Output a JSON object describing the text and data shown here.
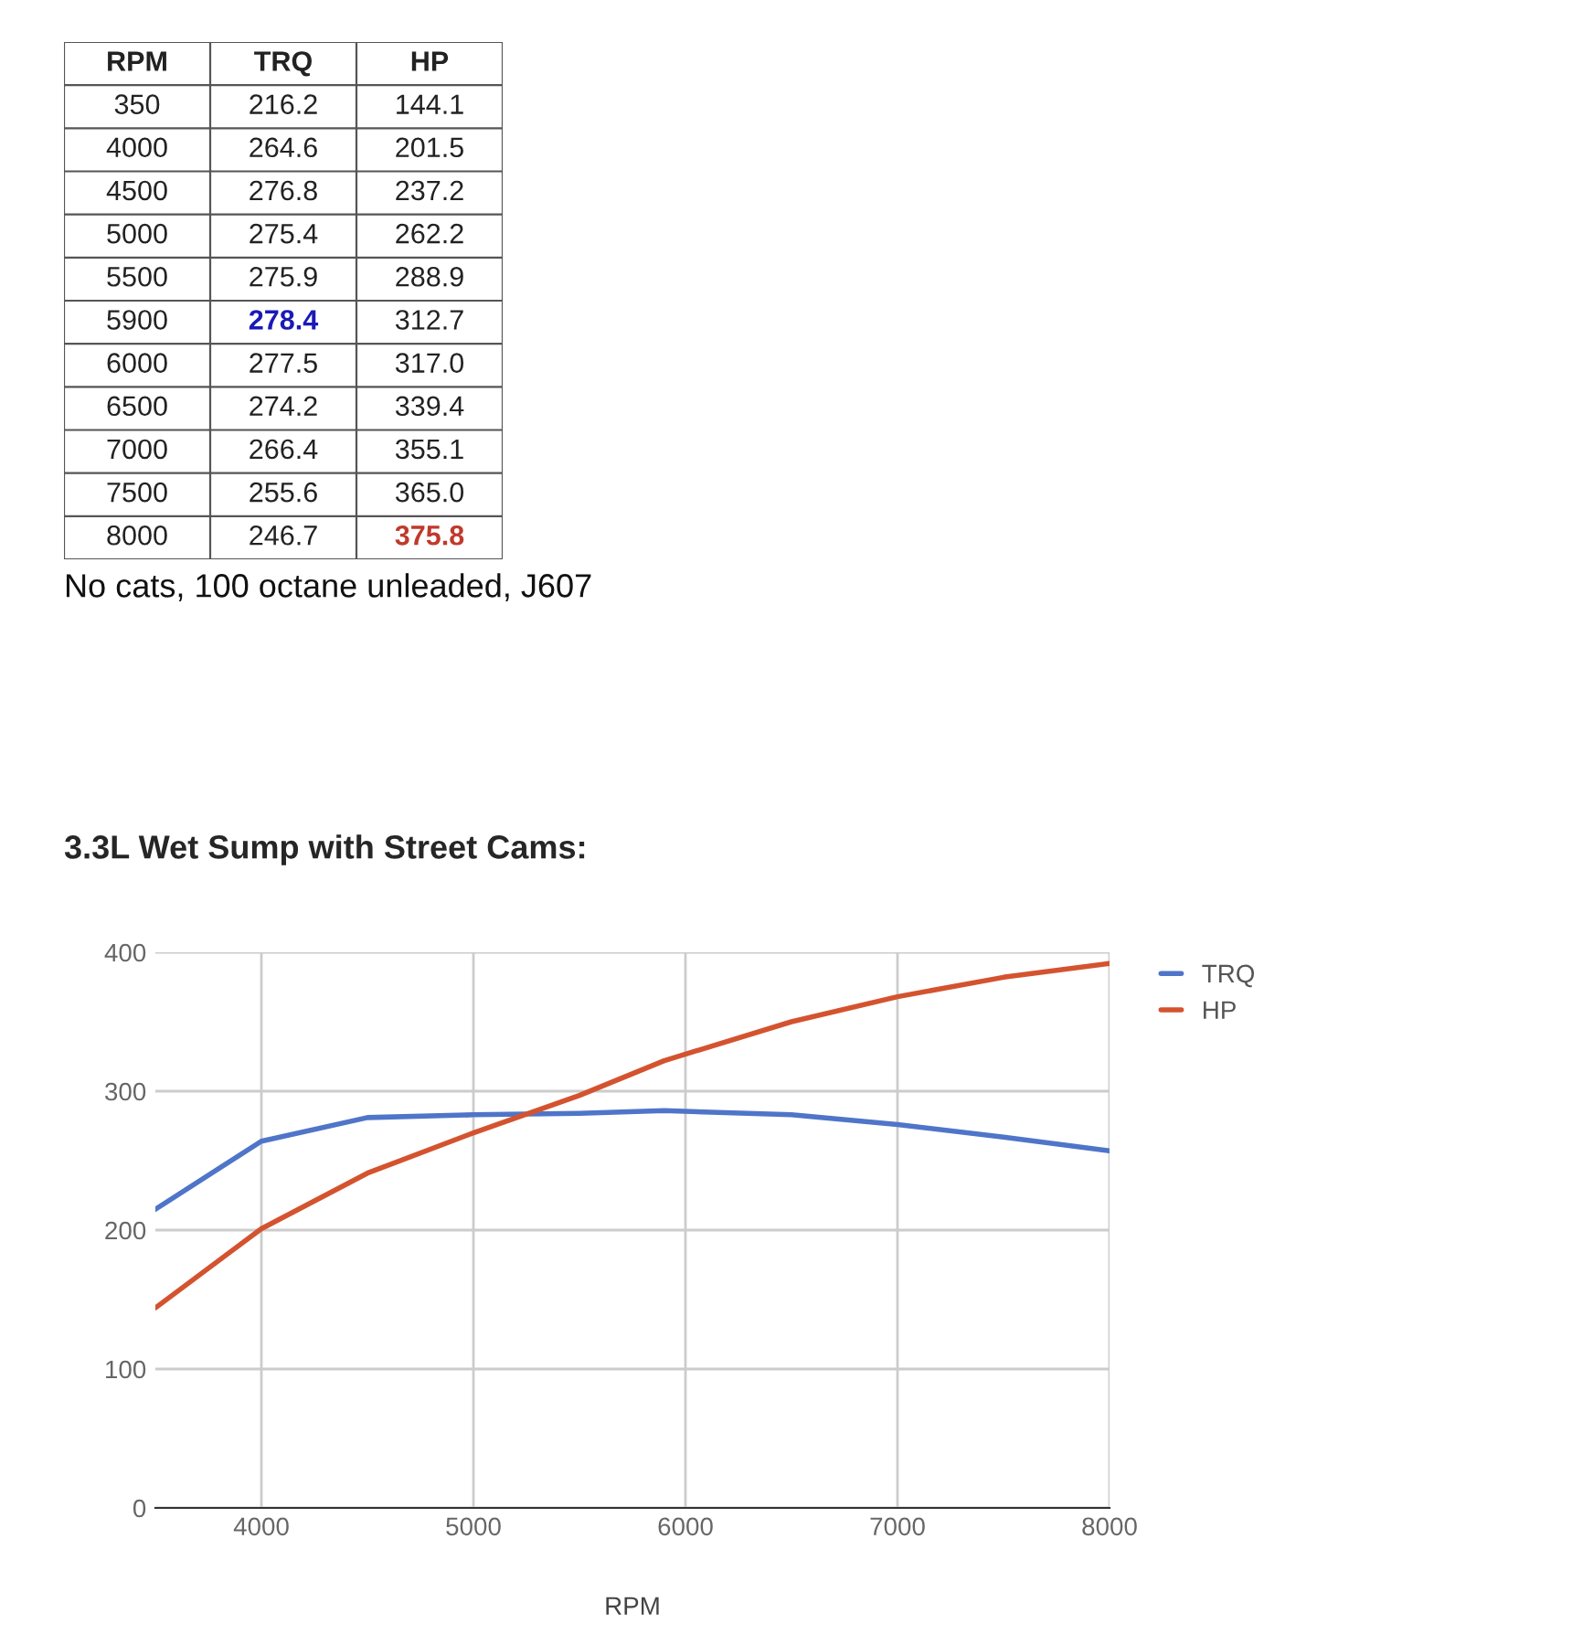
{
  "chart_data": [
    {
      "type": "other",
      "categories": [
        "RPM",
        "TRQ",
        "HP"
      ],
      "cell_labels": [
        [
          "350",
          "216.2",
          "144.1"
        ],
        [
          "4000",
          "264.6",
          "201.5"
        ],
        [
          "4500",
          "276.8",
          "237.2"
        ],
        [
          "5000",
          "275.4",
          "262.2"
        ],
        [
          "5500",
          "275.9",
          "288.9"
        ],
        [
          "5900",
          "278.4",
          "312.7"
        ],
        [
          "6000",
          "277.5",
          "317.0"
        ],
        [
          "6500",
          "274.2",
          "339.4"
        ],
        [
          "7000",
          "266.4",
          "355.1"
        ],
        [
          "7500",
          "255.6",
          "365.0"
        ],
        [
          "8000",
          "246.7",
          "375.8"
        ]
      ],
      "colors": [
        [
          "#222222",
          "#222222",
          "#222222"
        ],
        [
          "#222222",
          "#222222",
          "#222222"
        ],
        [
          "#222222",
          "#222222",
          "#222222"
        ],
        [
          "#222222",
          "#222222",
          "#222222"
        ],
        [
          "#222222",
          "#222222",
          "#222222"
        ],
        [
          "#222222",
          "#1a1ab8",
          "#222222"
        ],
        [
          "#222222",
          "#222222",
          "#222222"
        ],
        [
          "#222222",
          "#222222",
          "#222222"
        ],
        [
          "#222222",
          "#222222",
          "#222222"
        ],
        [
          "#222222",
          "#222222",
          "#222222"
        ],
        [
          "#222222",
          "#222222",
          "#c0392b"
        ]
      ],
      "annotations": [
        "No cats, 100 octane unleaded, J607"
      ]
    },
    {
      "type": "line",
      "title": "3.3L Wet Sump with Street Cams:",
      "xlabel": "RPM",
      "x": [
        3500,
        4000,
        4500,
        5000,
        5500,
        5900,
        6500,
        7000,
        7500,
        8000
      ],
      "series": [
        {
          "name": "TRQ",
          "color": "#4f75c9",
          "values": [
            215,
            264,
            281,
            283,
            284,
            286,
            283,
            276,
            267,
            257
          ]
        },
        {
          "name": "HP",
          "color": "#d4532f",
          "values": [
            144,
            201,
            241,
            270,
            297,
            322,
            350,
            368,
            382,
            392
          ]
        }
      ],
      "xlim": [
        3500,
        8000
      ],
      "xticks": [
        4000,
        5000,
        6000,
        7000,
        8000
      ],
      "ylim": [
        0,
        400
      ],
      "yticks": [
        0,
        100,
        200,
        300,
        400
      ],
      "grid": true,
      "legend": "top right",
      "marker": "none",
      "line_style": "solid"
    }
  ]
}
